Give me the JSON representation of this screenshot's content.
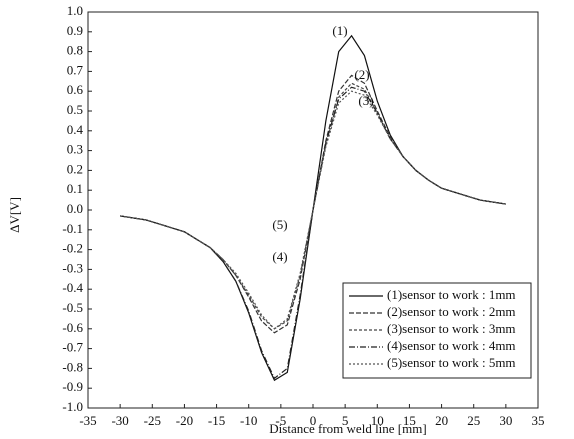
{
  "chart_data": {
    "type": "line",
    "x_label": "Distance from weld line [mm]",
    "y_label": "ΔV[V]",
    "xlim": [
      -35,
      35
    ],
    "xticks": [
      -35,
      -30,
      -25,
      -20,
      -15,
      -10,
      -5,
      0,
      5,
      10,
      15,
      20,
      25,
      30,
      35
    ],
    "ylim": [
      -1,
      1
    ],
    "yticks": [
      {
        "value": -1,
        "label": "-1.0"
      },
      -0.9,
      -0.8,
      -0.7,
      -0.6,
      -0.5,
      -0.4,
      -0.3,
      -0.2,
      -0.1,
      {
        "value": 0,
        "label": "0.0"
      },
      0.1,
      0.2,
      0.3,
      0.4,
      0.5,
      0.6,
      0.7,
      0.8,
      0.9,
      {
        "value": 1,
        "label": "1.0"
      }
    ],
    "legend": "lower right",
    "annotations": [
      "(1)",
      "(2)",
      "(3)",
      "(5)",
      "(4)"
    ],
    "x": [
      -30,
      -28,
      -26,
      -24,
      -22,
      -20,
      -18,
      -16,
      -14,
      -12,
      -10,
      -8,
      -6,
      -4,
      -2,
      0,
      2,
      4,
      6,
      8,
      10,
      12,
      14,
      16,
      18,
      20,
      22,
      24,
      26,
      28,
      30
    ],
    "series": [
      {
        "name": "(1)sensor to work : 1mm",
        "color": "#111111",
        "values": [
          -0.03,
          -0.04,
          -0.05,
          -0.07,
          -0.09,
          -0.11,
          -0.15,
          -0.19,
          -0.26,
          -0.36,
          -0.52,
          -0.72,
          -0.86,
          -0.82,
          -0.45,
          0.0,
          0.45,
          0.8,
          0.88,
          0.78,
          0.55,
          0.38,
          0.27,
          0.2,
          0.15,
          0.11,
          0.09,
          0.07,
          0.05,
          0.04,
          0.03
        ]
      },
      {
        "name": "(2)sensor to work : 2mm",
        "color": "#333333",
        "values": [
          -0.03,
          -0.04,
          -0.05,
          -0.07,
          -0.09,
          -0.11,
          -0.15,
          -0.19,
          -0.25,
          -0.33,
          -0.44,
          -0.56,
          -0.62,
          -0.58,
          -0.35,
          0.0,
          0.35,
          0.6,
          0.68,
          0.64,
          0.5,
          0.37,
          0.27,
          0.2,
          0.15,
          0.11,
          0.09,
          0.07,
          0.05,
          0.04,
          0.03
        ]
      },
      {
        "name": "(3)sensor to work : 3mm",
        "color": "#444444",
        "values": [
          -0.03,
          -0.04,
          -0.05,
          -0.07,
          -0.09,
          -0.11,
          -0.15,
          -0.19,
          -0.25,
          -0.33,
          -0.43,
          -0.54,
          -0.6,
          -0.56,
          -0.33,
          0.0,
          0.33,
          0.57,
          0.64,
          0.61,
          0.49,
          0.36,
          0.27,
          0.2,
          0.15,
          0.11,
          0.09,
          0.07,
          0.05,
          0.04,
          0.03
        ]
      },
      {
        "name": "(4)sensor to work : 4mm",
        "color": "#222222",
        "values": [
          -0.03,
          -0.04,
          -0.05,
          -0.07,
          -0.09,
          -0.11,
          -0.15,
          -0.19,
          -0.26,
          -0.36,
          -0.51,
          -0.71,
          -0.85,
          -0.8,
          -0.43,
          0.0,
          0.34,
          0.56,
          0.62,
          0.6,
          0.49,
          0.36,
          0.27,
          0.2,
          0.15,
          0.11,
          0.09,
          0.07,
          0.05,
          0.04,
          0.03
        ]
      },
      {
        "name": "(5)sensor to work : 5mm",
        "color": "#555555",
        "values": [
          -0.03,
          -0.04,
          -0.05,
          -0.07,
          -0.09,
          -0.11,
          -0.15,
          -0.19,
          -0.25,
          -0.32,
          -0.42,
          -0.53,
          -0.6,
          -0.55,
          -0.32,
          0.0,
          0.32,
          0.54,
          0.6,
          0.58,
          0.48,
          0.36,
          0.27,
          0.2,
          0.15,
          0.11,
          0.09,
          0.07,
          0.05,
          0.04,
          0.03
        ]
      }
    ]
  }
}
